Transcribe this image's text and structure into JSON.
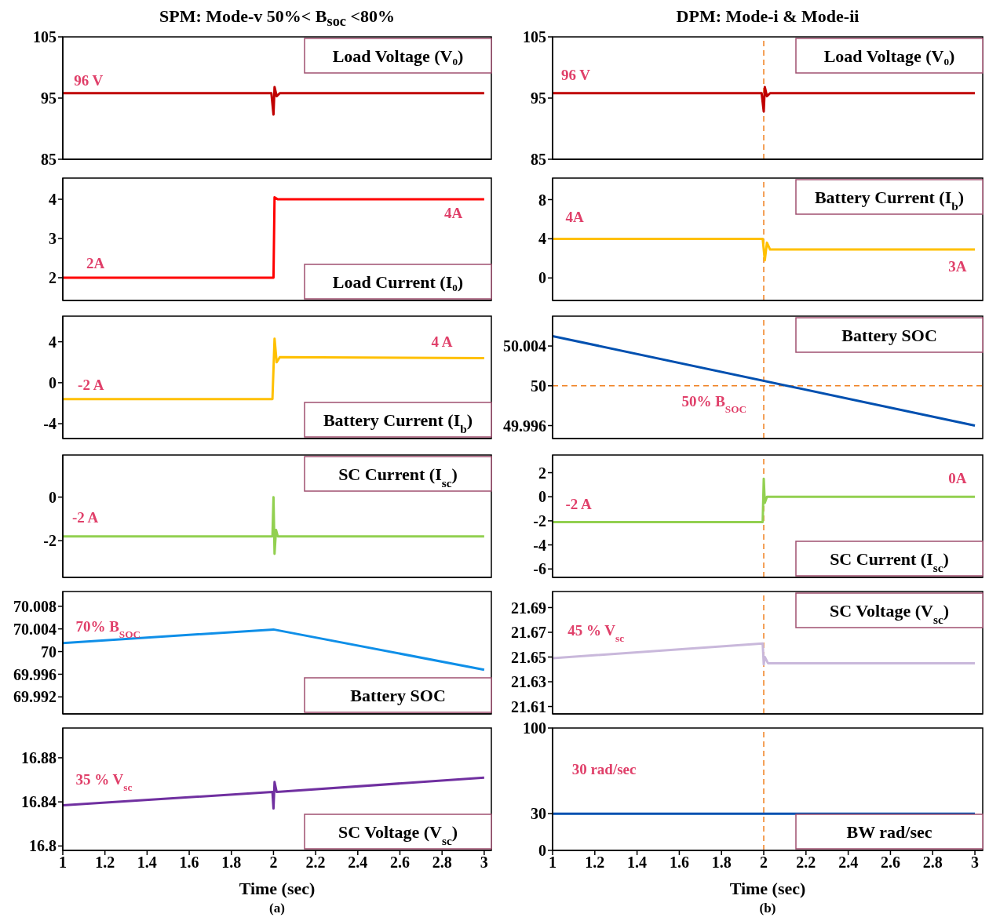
{
  "chart_data": [
    {
      "type": "line",
      "title": "SPM: Mode-v 50%< B$_{soc}$ <80%",
      "xlim": [
        1,
        3.034
      ],
      "ylim": [
        85,
        105
      ],
      "yticks": [
        85,
        95,
        105
      ],
      "tick_labels": "y",
      "marker": "none",
      "annotations": [
        "Load Voltage (V₀)",
        "96 V"
      ],
      "series": [
        {
          "color": "#c00000",
          "x": [
            1,
            1.99,
            2,
            2.005,
            2.015,
            2.03,
            3
          ],
          "values": [
            95.8,
            95.8,
            92.3,
            96.8,
            95.3,
            95.8,
            95.8
          ]
        }
      ]
    },
    {
      "type": "line",
      "xlim": [
        1,
        3.034
      ],
      "ylim": [
        1.42,
        4.54
      ],
      "yticks": [
        2,
        3,
        4
      ],
      "tick_labels": "y",
      "marker": "none",
      "annotations": [
        "Load Current (I₀)",
        "2A",
        "4A"
      ],
      "series": [
        {
          "color": "#ff0000",
          "x": [
            1,
            2,
            2.005,
            2.02,
            3
          ],
          "values": [
            2,
            2,
            4.05,
            4,
            4
          ]
        }
      ]
    },
    {
      "type": "line",
      "xlim": [
        1,
        3.034
      ],
      "ylim": [
        -5.45,
        6.5
      ],
      "yticks": [
        -4,
        0,
        4
      ],
      "tick_labels": "y",
      "marker": "none",
      "annotations": [
        "Battery Current (I$_{b}$)",
        "-2 A",
        "4 A"
      ],
      "series": [
        {
          "color": "#ffc000",
          "x": [
            1,
            1.995,
            2.005,
            2.015,
            2.03,
            3
          ],
          "values": [
            -1.6,
            -1.6,
            4.3,
            2,
            2.5,
            2.4
          ]
        }
      ]
    },
    {
      "type": "line",
      "xlim": [
        1,
        3.034
      ],
      "ylim": [
        -3.68,
        1.93
      ],
      "yticks": [
        -2,
        0
      ],
      "tick_labels": "y",
      "marker": "none",
      "annotations": [
        "SC Current (I$_{sc}$)",
        "-2 A"
      ],
      "series": [
        {
          "color": "#92d050",
          "x": [
            1,
            1.995,
            2,
            2.005,
            2.012,
            2.02,
            3
          ],
          "values": [
            -1.8,
            -1.8,
            0,
            -2.6,
            -1.5,
            -1.8,
            -1.8
          ]
        }
      ]
    },
    {
      "type": "line",
      "xlim": [
        1,
        3.034
      ],
      "ylim": [
        69.989,
        70.0106
      ],
      "yticks": [
        69.992,
        69.996,
        70,
        70.004,
        70.008
      ],
      "tick_labels": "y",
      "marker": "none",
      "annotations": [
        "Battery SOC",
        "70% B$_{SOC}$"
      ],
      "series": [
        {
          "color": "#0f8fe8",
          "x": [
            1,
            2,
            3
          ],
          "values": [
            70.0015,
            70.0039,
            69.9968
          ]
        }
      ]
    },
    {
      "type": "line",
      "xlim": [
        1,
        3.034
      ],
      "ylim": [
        16.796,
        16.907
      ],
      "yticks": [
        16.8,
        16.84,
        16.88
      ],
      "xticks": [
        1,
        1.2,
        1.4,
        1.6,
        1.8,
        2,
        2.2,
        2.4,
        2.6,
        2.8,
        3
      ],
      "xlabel": "Time (sec)",
      "marker": "none",
      "annotations": [
        "SC Voltage (V$_{sc}$)",
        "35 % V$_{sc}$",
        "(a)"
      ],
      "series": [
        {
          "color": "#7030a0",
          "x": [
            1,
            1.995,
            2,
            2.005,
            2.015,
            3
          ],
          "values": [
            16.837,
            16.849,
            16.834,
            16.858,
            16.849,
            16.862
          ]
        }
      ]
    },
    {
      "type": "line",
      "title": "DPM: Mode-i & Mode-ii",
      "xlim": [
        1,
        3.037
      ],
      "ylim": [
        85,
        105
      ],
      "yticks": [
        85,
        95,
        105
      ],
      "tick_labels": "y",
      "marker": "none",
      "annotations": [
        "Load Voltage (V₀)",
        "96 V"
      ],
      "ref_lines": [
        {
          "axis": "x",
          "value": 2,
          "color": "#f08020",
          "line_style": "dashed"
        }
      ],
      "series": [
        {
          "color": "#c00000",
          "x": [
            1,
            1.99,
            2,
            2.005,
            2.015,
            2.03,
            3
          ],
          "values": [
            95.8,
            95.8,
            92.8,
            96.8,
            95.3,
            95.8,
            95.8
          ]
        }
      ]
    },
    {
      "type": "line",
      "xlim": [
        1,
        3.037
      ],
      "ylim": [
        -2.3,
        10.2
      ],
      "yticks": [
        0,
        4,
        8
      ],
      "tick_labels": "y",
      "marker": "none",
      "annotations": [
        "Battery Current (I$_{b}$)",
        "4A",
        "3A"
      ],
      "ref_lines": [
        {
          "axis": "x",
          "value": 2,
          "color": "#f08020",
          "line_style": "dashed"
        }
      ],
      "series": [
        {
          "color": "#ffc000",
          "x": [
            1,
            1.995,
            2.005,
            2.015,
            2.03,
            3
          ],
          "values": [
            4,
            4,
            1.8,
            3.6,
            2.9,
            2.9
          ]
        }
      ]
    },
    {
      "type": "line",
      "xlim": [
        1,
        3.037
      ],
      "ylim": [
        49.9947,
        50.007
      ],
      "yticks": [
        49.996,
        50,
        50.004
      ],
      "tick_labels": "y",
      "marker": "none",
      "annotations": [
        "Battery SOC",
        "50% B$_{SOC}$"
      ],
      "ref_lines": [
        {
          "axis": "x",
          "value": 2,
          "color": "#f08020",
          "line_style": "dashed"
        },
        {
          "axis": "y",
          "value": 50,
          "color": "#f08020",
          "line_style": "dashed"
        }
      ],
      "series": [
        {
          "color": "#0050b0",
          "x": [
            1,
            3
          ],
          "values": [
            50.005,
            49.996
          ]
        }
      ]
    },
    {
      "type": "line",
      "xlim": [
        1,
        3.037
      ],
      "ylim": [
        -6.7,
        3.47
      ],
      "yticks": [
        -6,
        -4,
        -2,
        0,
        2
      ],
      "tick_labels": "y",
      "marker": "none",
      "annotations": [
        "SC Current (I$_{sc}$)",
        "-2 A",
        "0A"
      ],
      "ref_lines": [
        {
          "axis": "x",
          "value": 2,
          "color": "#f08020",
          "line_style": "dashed"
        }
      ],
      "series": [
        {
          "color": "#92d050",
          "x": [
            1,
            1.995,
            2,
            2.005,
            2.015,
            3
          ],
          "values": [
            -2.1,
            -2.1,
            1.5,
            -0.5,
            0,
            0
          ]
        }
      ]
    },
    {
      "type": "line",
      "xlim": [
        1,
        3.037
      ],
      "ylim": [
        21.604,
        21.703
      ],
      "yticks": [
        21.61,
        21.63,
        21.65,
        21.67,
        21.69
      ],
      "tick_labels": "y",
      "marker": "none",
      "annotations": [
        "SC Voltage (V$_{sc}$)",
        "45 % V$_{sc}$"
      ],
      "ref_lines": [
        {
          "axis": "x",
          "value": 2,
          "color": "#f08020",
          "line_style": "dashed"
        }
      ],
      "series": [
        {
          "color": "#c9b8db",
          "x": [
            1,
            1.995,
            2,
            2.005,
            2.02,
            3
          ],
          "values": [
            21.649,
            21.661,
            21.644,
            21.65,
            21.645,
            21.645
          ]
        }
      ]
    },
    {
      "type": "line",
      "xlim": [
        1,
        3.037
      ],
      "ylim": [
        0,
        100
      ],
      "yticks": [
        0,
        30,
        100
      ],
      "xticks": [
        1,
        1.2,
        1.4,
        1.6,
        1.8,
        2,
        2.2,
        2.4,
        2.6,
        2.8,
        3
      ],
      "xlabel": "Time (sec)",
      "marker": "none",
      "annotations": [
        "BW rad/sec",
        "30 rad/sec",
        "(b)"
      ],
      "ref_lines": [
        {
          "axis": "x",
          "value": 2,
          "color": "#f08020",
          "line_style": "dashed"
        }
      ],
      "series": [
        {
          "color": "#0050b0",
          "x": [
            1,
            3
          ],
          "values": [
            30,
            30
          ]
        }
      ]
    }
  ]
}
